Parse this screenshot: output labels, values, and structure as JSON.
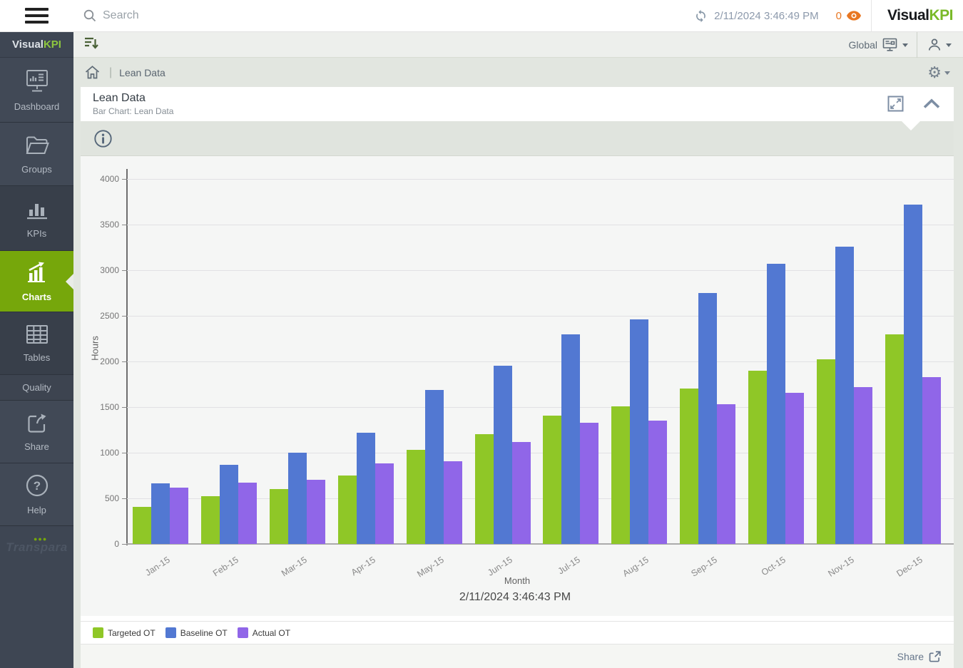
{
  "topbar": {
    "search_placeholder": "Search",
    "refresh_timestamp": "2/11/2024 3:46:49 PM",
    "alert_count": "0",
    "logo": {
      "part1": "Visual",
      "part2": "KPI"
    }
  },
  "sidebar": {
    "logo": {
      "part1": "Visual",
      "part2": "KPI"
    },
    "items": [
      {
        "label": "Dashboard",
        "active": false
      },
      {
        "label": "Groups",
        "active": false
      },
      {
        "label": "KPIs",
        "active": false
      },
      {
        "label": "Charts",
        "active": true
      },
      {
        "label": "Tables",
        "active": false
      },
      {
        "label": "Quality",
        "active": false
      },
      {
        "label": "Share",
        "active": false
      },
      {
        "label": "Help",
        "active": false
      }
    ],
    "brand": "Transpara"
  },
  "toolbar": {
    "scope_label": "Global"
  },
  "breadcrumb": {
    "current": "Lean Data"
  },
  "card": {
    "title": "Lean Data",
    "subtitle": "Bar Chart: Lean Data"
  },
  "footer": {
    "share_label": "Share"
  },
  "chart_data": {
    "type": "bar",
    "title": "Lean Data",
    "categories": [
      "Jan-15",
      "Feb-15",
      "Mar-15",
      "Apr-15",
      "May-15",
      "Jun-15",
      "Jul-15",
      "Aug-15",
      "Sep-15",
      "Oct-15",
      "Nov-15",
      "Dec-15"
    ],
    "series": [
      {
        "name": "Targeted OT",
        "color": "#8fc727",
        "values": [
          410,
          525,
          605,
          750,
          1030,
          1200,
          1410,
          1510,
          1700,
          1900,
          2020,
          2300
        ]
      },
      {
        "name": "Baseline OT",
        "color": "#5278d2",
        "values": [
          665,
          870,
          1000,
          1215,
          1690,
          1950,
          2300,
          2460,
          2750,
          3070,
          3260,
          3720
        ]
      },
      {
        "name": "Actual OT",
        "color": "#9066e8",
        "values": [
          615,
          670,
          700,
          880,
          910,
          1120,
          1330,
          1350,
          1530,
          1660,
          1720,
          1830
        ]
      }
    ],
    "xlabel": "Month",
    "ylabel": "Hours",
    "ylim": [
      0,
      4000
    ],
    "ytick_step": 500,
    "grid": true,
    "legend_position": "bottom-left",
    "timestamp": "2/11/2024 3:46:43 PM"
  }
}
